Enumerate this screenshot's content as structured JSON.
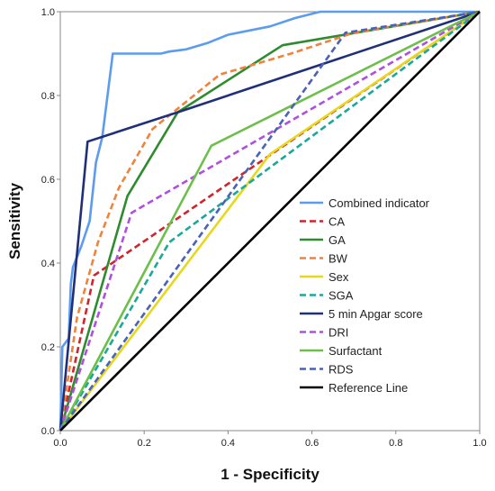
{
  "chart_data": {
    "type": "line",
    "title": "",
    "xlabel": "1 - Specificity",
    "ylabel": "Sensitivity",
    "xlim": [
      0,
      1
    ],
    "ylim": [
      0,
      1
    ],
    "xticks": [
      "0.0",
      "0.2",
      "0.4",
      "0.6",
      "0.8",
      "1.0"
    ],
    "yticks": [
      "0.0",
      "0.2",
      "0.4",
      "0.6",
      "0.8",
      "1.0"
    ],
    "grid": false,
    "legend_position": "bottom-right",
    "series": [
      {
        "name": "Combined indicator",
        "color": "#5b9bf0",
        "dash": "solid",
        "points": [
          [
            0,
            0
          ],
          [
            0.005,
            0.2
          ],
          [
            0.02,
            0.22
          ],
          [
            0.025,
            0.35
          ],
          [
            0.03,
            0.39
          ],
          [
            0.05,
            0.44
          ],
          [
            0.07,
            0.5
          ],
          [
            0.085,
            0.64
          ],
          [
            0.1,
            0.7
          ],
          [
            0.11,
            0.78
          ],
          [
            0.125,
            0.9
          ],
          [
            0.24,
            0.9
          ],
          [
            0.26,
            0.905
          ],
          [
            0.3,
            0.91
          ],
          [
            0.35,
            0.925
          ],
          [
            0.4,
            0.945
          ],
          [
            0.5,
            0.965
          ],
          [
            0.56,
            0.985
          ],
          [
            0.62,
            1.0
          ],
          [
            1,
            1.0
          ]
        ]
      },
      {
        "name": "CA",
        "color": "#d2232a",
        "dash": "dashed",
        "points": [
          [
            0,
            0
          ],
          [
            0.08,
            0.37
          ],
          [
            1,
            1
          ]
        ]
      },
      {
        "name": "GA",
        "color": "#2e8b2e",
        "dash": "solid",
        "points": [
          [
            0,
            0
          ],
          [
            0.16,
            0.56
          ],
          [
            0.28,
            0.76
          ],
          [
            0.53,
            0.92
          ],
          [
            1,
            1
          ]
        ]
      },
      {
        "name": "BW",
        "color": "#f0823c",
        "dash": "dashed",
        "points": [
          [
            0,
            0
          ],
          [
            0.04,
            0.27
          ],
          [
            0.09,
            0.45
          ],
          [
            0.14,
            0.58
          ],
          [
            0.22,
            0.72
          ],
          [
            0.38,
            0.85
          ],
          [
            0.55,
            0.9
          ],
          [
            0.7,
            0.95
          ],
          [
            1,
            1
          ]
        ]
      },
      {
        "name": "Sex",
        "color": "#e8d81c",
        "dash": "solid",
        "points": [
          [
            0,
            0
          ],
          [
            0.5,
            0.66
          ],
          [
            1,
            1
          ]
        ]
      },
      {
        "name": "SGA",
        "color": "#1aa898",
        "dash": "dashed",
        "points": [
          [
            0,
            0
          ],
          [
            0.26,
            0.45
          ],
          [
            1,
            1
          ]
        ]
      },
      {
        "name": "5 min Apgar score",
        "color": "#1f2f7a",
        "dash": "solid",
        "points": [
          [
            0,
            0
          ],
          [
            0.065,
            0.69
          ],
          [
            0.28,
            0.76
          ],
          [
            1,
            1
          ]
        ]
      },
      {
        "name": "DRI",
        "color": "#b04ee0",
        "dash": "dashed",
        "points": [
          [
            0,
            0
          ],
          [
            0.17,
            0.52
          ],
          [
            1,
            1
          ]
        ]
      },
      {
        "name": "Surfactant",
        "color": "#6cc04a",
        "dash": "solid",
        "points": [
          [
            0,
            0
          ],
          [
            0.36,
            0.68
          ],
          [
            1,
            1
          ]
        ]
      },
      {
        "name": "RDS",
        "color": "#4a62b8",
        "dash": "dashed",
        "points": [
          [
            0,
            0
          ],
          [
            0.68,
            0.95
          ],
          [
            1,
            1
          ]
        ]
      },
      {
        "name": "Reference Line",
        "color": "#000000",
        "dash": "solid",
        "points": [
          [
            0,
            0
          ],
          [
            1,
            1
          ]
        ]
      }
    ]
  }
}
